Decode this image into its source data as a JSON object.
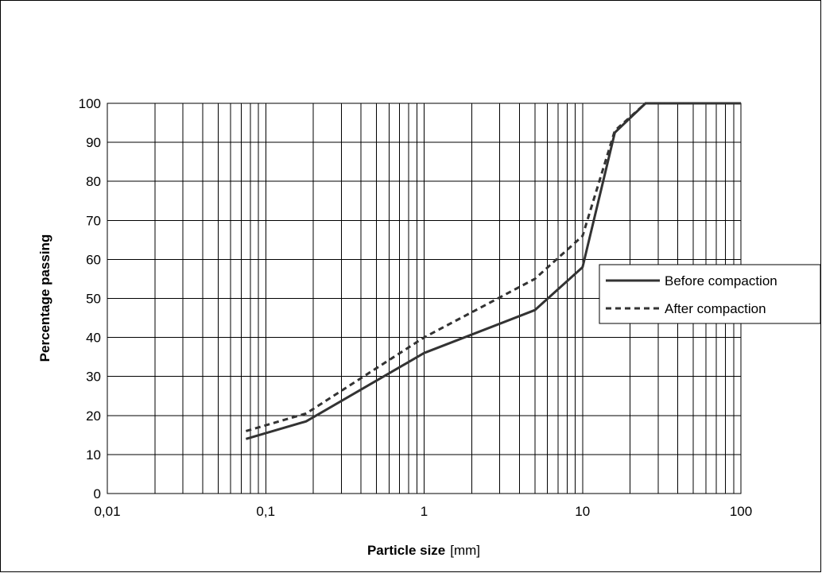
{
  "chart_data": {
    "type": "line",
    "x_scale": "log",
    "xlim": [
      0.01,
      100
    ],
    "ylim": [
      0,
      100
    ],
    "x_tick_labels": [
      "0,01",
      "0,1",
      "1",
      "10",
      "100"
    ],
    "y_tick_labels": [
      "0",
      "10",
      "20",
      "30",
      "40",
      "50",
      "60",
      "70",
      "80",
      "90",
      "100"
    ],
    "xlabel": "Particle size",
    "xlabel_unit": "[mm]",
    "ylabel": "Percentage passing",
    "grid": true,
    "legend_position": "right",
    "series": [
      {
        "name": "Before compaction",
        "style": "solid",
        "color": "#333333",
        "x": [
          0.075,
          0.18,
          1,
          5,
          10,
          16,
          25,
          100
        ],
        "y": [
          14,
          18.5,
          36,
          47,
          58,
          92.5,
          100,
          100
        ]
      },
      {
        "name": "After compaction",
        "style": "dashed",
        "color": "#333333",
        "x": [
          0.075,
          0.18,
          1,
          5,
          10,
          16,
          25,
          100
        ],
        "y": [
          16,
          20.5,
          40,
          55,
          66,
          93,
          100,
          100
        ]
      }
    ]
  }
}
